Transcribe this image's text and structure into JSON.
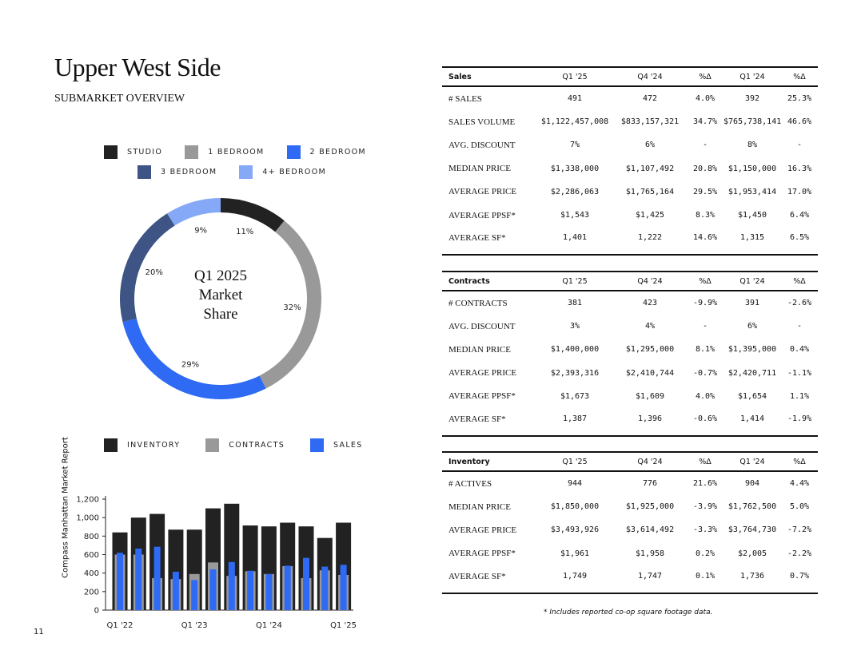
{
  "title": "Upper West Side",
  "subtitle": "SUBMARKET OVERVIEW",
  "side_text": "Compass   Manhattan Market Report",
  "page_number": "11",
  "donut": {
    "center_lines": [
      "Q1 2025",
      "Market",
      "Share"
    ],
    "legend": [
      {
        "label": "STUDIO",
        "color": "#222222"
      },
      {
        "label": "1 BEDROOM",
        "color": "#999999"
      },
      {
        "label": "2 BEDROOM",
        "color": "#2f6af5"
      },
      {
        "label": "3 BEDROOM",
        "color": "#3d5485"
      },
      {
        "label": "4+ BEDROOM",
        "color": "#86a9f7"
      }
    ],
    "slices": [
      {
        "label": "STUDIO",
        "value": 11,
        "text": "11%"
      },
      {
        "label": "1 BEDROOM",
        "value": 32,
        "text": "32%"
      },
      {
        "label": "2 BEDROOM",
        "value": 29,
        "text": "29%"
      },
      {
        "label": "3 BEDROOM",
        "value": 20,
        "text": "20%"
      },
      {
        "label": "4+ BEDROOM",
        "value": 9,
        "text": "9%"
      }
    ]
  },
  "chart_data": [
    {
      "type": "pie",
      "title": "Q1 2025 Market Share",
      "categories": [
        "STUDIO",
        "1 BEDROOM",
        "2 BEDROOM",
        "3 BEDROOM",
        "4+ BEDROOM"
      ],
      "values": [
        11,
        32,
        29,
        20,
        9
      ],
      "legend": "top"
    },
    {
      "type": "bar",
      "categories": [
        "Q1 '22",
        "Q2 '22",
        "Q3 '22",
        "Q4 '22",
        "Q1 '23",
        "Q2 '23",
        "Q3 '23",
        "Q4 '23",
        "Q1 '24",
        "Q2 '24",
        "Q3 '24",
        "Q4 '24",
        "Q1 '25"
      ],
      "x_tick_labels": [
        "Q1 '22",
        "Q1 '23",
        "Q1 '24",
        "Q1 '25"
      ],
      "series": [
        {
          "name": "INVENTORY",
          "color": "#222222",
          "values": [
            840,
            1000,
            1040,
            870,
            870,
            1100,
            1150,
            915,
            905,
            945,
            905,
            780,
            945
          ]
        },
        {
          "name": "CONTRACTS",
          "color": "#999999",
          "values": [
            600,
            600,
            345,
            335,
            390,
            515,
            370,
            420,
            390,
            475,
            345,
            430,
            380
          ]
        },
        {
          "name": "SALES",
          "color": "#2f6af5",
          "values": [
            620,
            665,
            685,
            415,
            325,
            440,
            520,
            425,
            390,
            480,
            565,
            470,
            490
          ]
        }
      ],
      "ylim": [
        0,
        1200
      ],
      "yticks": [
        "0",
        "200",
        "400",
        "600",
        "800",
        "1,000",
        "1,200"
      ],
      "legend": "top"
    }
  ],
  "tables": [
    {
      "header": [
        "Sales",
        "Q1 '25",
        "Q4 '24",
        "%Δ",
        "Q1 '24",
        "%Δ"
      ],
      "rows": [
        [
          "# SALES",
          "491",
          "472",
          "4.0%",
          "392",
          "25.3%"
        ],
        [
          "SALES VOLUME",
          "$1,122,457,008",
          "$833,157,321",
          "34.7%",
          "$765,738,141",
          "46.6%"
        ],
        [
          "AVG. DISCOUNT",
          "7%",
          "6%",
          "-",
          "8%",
          "-"
        ],
        [
          "MEDIAN PRICE",
          "$1,338,000",
          "$1,107,492",
          "20.8%",
          "$1,150,000",
          "16.3%"
        ],
        [
          "AVERAGE PRICE",
          "$2,286,063",
          "$1,765,164",
          "29.5%",
          "$1,953,414",
          "17.0%"
        ],
        [
          "AVERAGE PPSF*",
          "$1,543",
          "$1,425",
          "8.3%",
          "$1,450",
          "6.4%"
        ],
        [
          "AVERAGE SF*",
          "1,401",
          "1,222",
          "14.6%",
          "1,315",
          "6.5%"
        ]
      ]
    },
    {
      "header": [
        "Contracts",
        "Q1 '25",
        "Q4 '24",
        "%Δ",
        "Q1 '24",
        "%Δ"
      ],
      "rows": [
        [
          "# CONTRACTS",
          "381",
          "423",
          "-9.9%",
          "391",
          "-2.6%"
        ],
        [
          "AVG. DISCOUNT",
          "3%",
          "4%",
          "-",
          "6%",
          "-"
        ],
        [
          "MEDIAN PRICE",
          "$1,400,000",
          "$1,295,000",
          "8.1%",
          "$1,395,000",
          "0.4%"
        ],
        [
          "AVERAGE PRICE",
          "$2,393,316",
          "$2,410,744",
          "-0.7%",
          "$2,420,711",
          "-1.1%"
        ],
        [
          "AVERAGE PPSF*",
          "$1,673",
          "$1,609",
          "4.0%",
          "$1,654",
          "1.1%"
        ],
        [
          "AVERAGE SF*",
          "1,387",
          "1,396",
          "-0.6%",
          "1,414",
          "-1.9%"
        ]
      ]
    },
    {
      "header": [
        "Inventory",
        "Q1 '25",
        "Q4 '24",
        "%Δ",
        "Q1 '24",
        "%Δ"
      ],
      "rows": [
        [
          "# ACTIVES",
          "944",
          "776",
          "21.6%",
          "904",
          "4.4%"
        ],
        [
          "MEDIAN PRICE",
          "$1,850,000",
          "$1,925,000",
          "-3.9%",
          "$1,762,500",
          "5.0%"
        ],
        [
          "AVERAGE PRICE",
          "$3,493,926",
          "$3,614,492",
          "-3.3%",
          "$3,764,730",
          "-7.2%"
        ],
        [
          "AVERAGE PPSF*",
          "$1,961",
          "$1,958",
          "0.2%",
          "$2,005",
          "-2.2%"
        ],
        [
          "AVERAGE SF*",
          "1,749",
          "1,747",
          "0.1%",
          "1,736",
          "0.7%"
        ]
      ]
    }
  ],
  "footnote": "* Includes reported co-op square footage data."
}
